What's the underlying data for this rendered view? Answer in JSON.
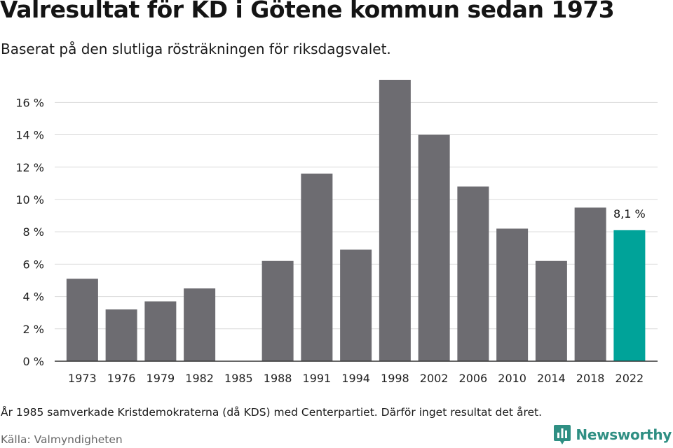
{
  "header": {
    "title": "Valresultat för KD i Götene kommun sedan 1973",
    "subtitle": "Baserat på den slutliga rösträkningen för riksdagsvalet."
  },
  "footer": {
    "note": "År 1985 samverkade Kristdemokraterna (då KDS) med Centerpartiet. Därför inget resultat det året.",
    "source": "Källa: Valmyndigheten",
    "brand": "Newsworthy"
  },
  "colors": {
    "bar": "#6d6c71",
    "highlight": "#00a399",
    "grid": "#d9d9d9",
    "axis": "#333333",
    "brand": "#2f8f83"
  },
  "icons": {
    "brand": "newsworthy-bar-logo-icon"
  },
  "chart_data": {
    "type": "bar",
    "title": "Valresultat för KD i Götene kommun sedan 1973",
    "subtitle": "Baserat på den slutliga rösträkningen för riksdagsvalet.",
    "xlabel": "",
    "ylabel": "",
    "categories": [
      "1973",
      "1976",
      "1979",
      "1982",
      "1985",
      "1988",
      "1991",
      "1994",
      "1998",
      "2002",
      "2006",
      "2010",
      "2014",
      "2018",
      "2022"
    ],
    "values": [
      5.1,
      3.2,
      3.7,
      4.5,
      null,
      6.2,
      11.6,
      6.9,
      17.4,
      14.0,
      10.8,
      8.2,
      6.2,
      9.5,
      8.1
    ],
    "ylim": [
      0,
      17.4
    ],
    "yticks": [
      0,
      2,
      4,
      6,
      8,
      10,
      12,
      14,
      16
    ],
    "ytick_labels": [
      "0 %",
      "2 %",
      "4 %",
      "6 %",
      "8 %",
      "10 %",
      "12 %",
      "14 %",
      "16 %"
    ],
    "highlight_category": "2022",
    "annotations": [
      {
        "category": "2022",
        "text": "8,1 %"
      }
    ],
    "grid": true,
    "legend": "none"
  }
}
